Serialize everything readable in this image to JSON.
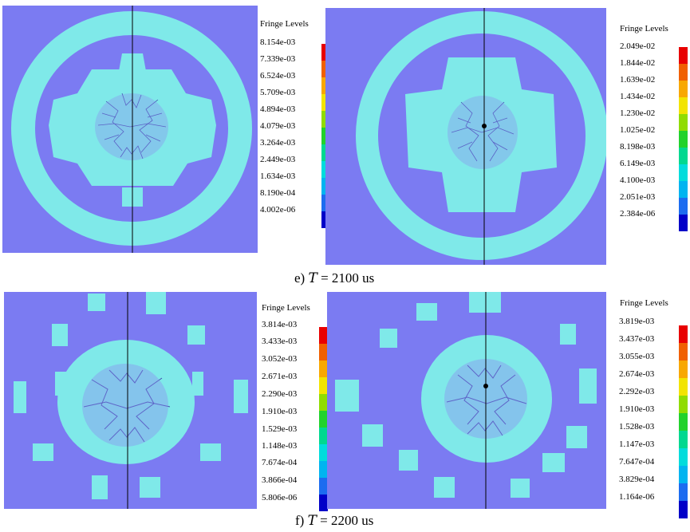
{
  "colors": {
    "background_field": "#7B7BF2",
    "fringe_cyan": "#7FE9E9",
    "crack_dark": "#3A3AA8",
    "axis_line": "#000000",
    "scale": [
      "#0000C8",
      "#1C6CF0",
      "#00B4F0",
      "#00DCDC",
      "#00D890",
      "#22D22C",
      "#90DC00",
      "#F2E400",
      "#F8A800",
      "#F06000",
      "#E80000"
    ]
  },
  "panels": [
    {
      "id": "e-left",
      "legend_title": "Fringe Levels",
      "levels": [
        "8.154e-03",
        "7.339e-03",
        "6.524e-03",
        "5.709e-03",
        "4.894e-03",
        "4.079e-03",
        "3.264e-03",
        "2.449e-03",
        "1.634e-03",
        "8.190e-04",
        "4.002e-06"
      ]
    },
    {
      "id": "e-right",
      "legend_title": "Fringe Levels",
      "levels": [
        "2.049e-02",
        "1.844e-02",
        "1.639e-02",
        "1.434e-02",
        "1.230e-02",
        "1.025e-02",
        "8.198e-03",
        "6.149e-03",
        "4.100e-03",
        "2.051e-03",
        "2.384e-06"
      ]
    },
    {
      "id": "f-left",
      "legend_title": "Fringe Levels",
      "levels": [
        "3.814e-03",
        "3.433e-03",
        "3.052e-03",
        "2.671e-03",
        "2.290e-03",
        "1.910e-03",
        "1.529e-03",
        "1.148e-03",
        "7.674e-04",
        "3.866e-04",
        "5.806e-06"
      ]
    },
    {
      "id": "f-right",
      "legend_title": "Fringe Levels",
      "levels": [
        "3.819e-03",
        "3.437e-03",
        "3.055e-03",
        "2.674e-03",
        "2.292e-03",
        "1.910e-03",
        "1.528e-03",
        "1.147e-03",
        "7.647e-04",
        "3.829e-04",
        "1.164e-06"
      ]
    }
  ],
  "captions": {
    "e": {
      "prefix": "e) ",
      "var": "T",
      "suffix": " = 2100 us"
    },
    "f": {
      "prefix": "f) ",
      "var": "T",
      "suffix": " = 2200 us"
    }
  }
}
